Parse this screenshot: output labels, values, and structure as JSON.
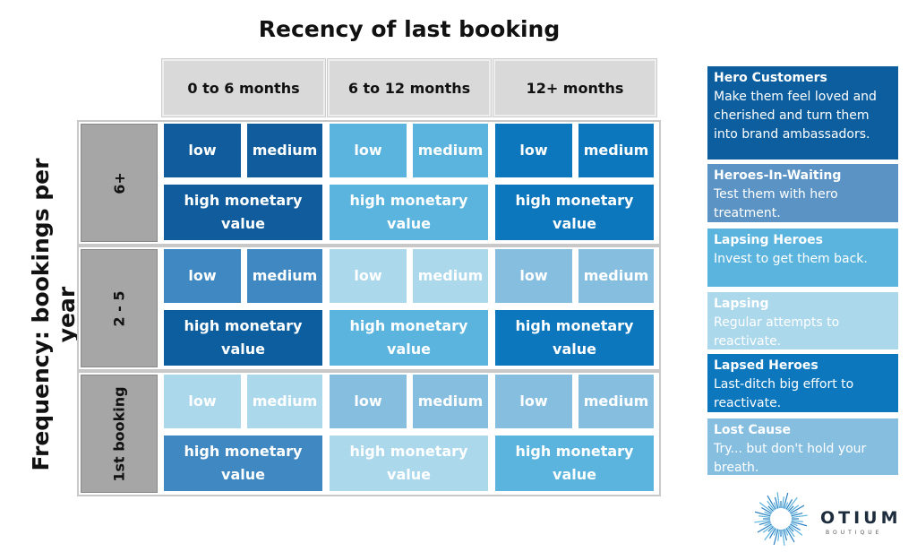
{
  "title": "Recency of last booking",
  "y_label": "Frequency:  bookings per year",
  "columns": [
    "0 to 6 months",
    "6 to 12 months",
    "12+ months"
  ],
  "rows": [
    {
      "label": "6+",
      "cells": [
        {
          "low": "low",
          "medium": "medium",
          "high": "high monetary value"
        },
        {
          "low": "low",
          "medium": "medium",
          "high": "high monetary value"
        },
        {
          "low": "low",
          "medium": "medium",
          "high": "high monetary value"
        }
      ]
    },
    {
      "label": "2 - 5",
      "cells": [
        {
          "low": "low",
          "medium": "medium",
          "high": "high monetary value"
        },
        {
          "low": "low",
          "medium": "medium",
          "high": "high monetary value"
        },
        {
          "low": "low",
          "medium": "medium",
          "high": "high monetary value"
        }
      ]
    },
    {
      "label": "1st booking",
      "cells": [
        {
          "low": "low",
          "medium": "medium",
          "high": "high monetary value"
        },
        {
          "low": "low",
          "medium": "medium",
          "high": "high monetary value"
        },
        {
          "low": "low",
          "medium": "medium",
          "high": "high monetary value"
        }
      ]
    }
  ],
  "legend": [
    {
      "title": "Hero Customers",
      "text": "Make them feel loved and cherished and turn them into brand ambassadors."
    },
    {
      "title": "Heroes-In-Waiting",
      "text": "Test them with hero treatment."
    },
    {
      "title": "Lapsing Heroes",
      "text": "Invest to get them back."
    },
    {
      "title": "Lapsing",
      "text": "Regular attempts to reactivate."
    },
    {
      "title": "Lapsed Heroes",
      "text": "Last-ditch big effort to reactivate."
    },
    {
      "title": "Lost Cause",
      "text": "Try... but don't hold your breath."
    }
  ],
  "logo": {
    "name": "OTIUM",
    "tagline": "BOUTIQUE"
  }
}
